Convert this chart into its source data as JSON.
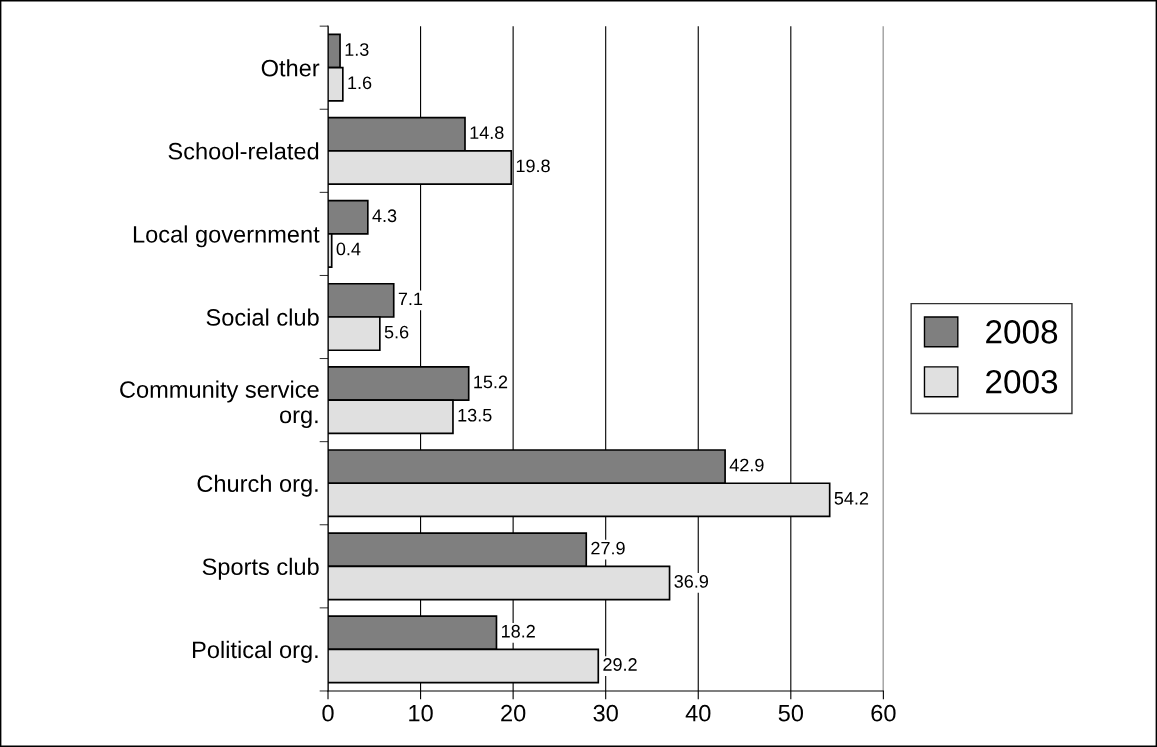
{
  "chart_data": {
    "type": "bar",
    "orientation": "horizontal",
    "categories": [
      "Other",
      "School-related",
      "Local government",
      "Social club",
      "Community service\norg.",
      "Church org.",
      "Sports club",
      "Political org."
    ],
    "series": [
      {
        "name": "2008",
        "color": "#7f7f7f",
        "values": [
          1.3,
          14.8,
          4.3,
          7.1,
          15.2,
          42.9,
          27.9,
          18.2
        ]
      },
      {
        "name": "2003",
        "color": "#e0e0e0",
        "values": [
          1.6,
          19.8,
          0.4,
          5.6,
          13.5,
          54.2,
          36.9,
          29.2
        ]
      }
    ],
    "xlim": [
      0,
      60
    ],
    "xticks": [
      0,
      10,
      20,
      30,
      40,
      50,
      60
    ],
    "grid": "x",
    "legend": "right",
    "data_labels": true
  }
}
